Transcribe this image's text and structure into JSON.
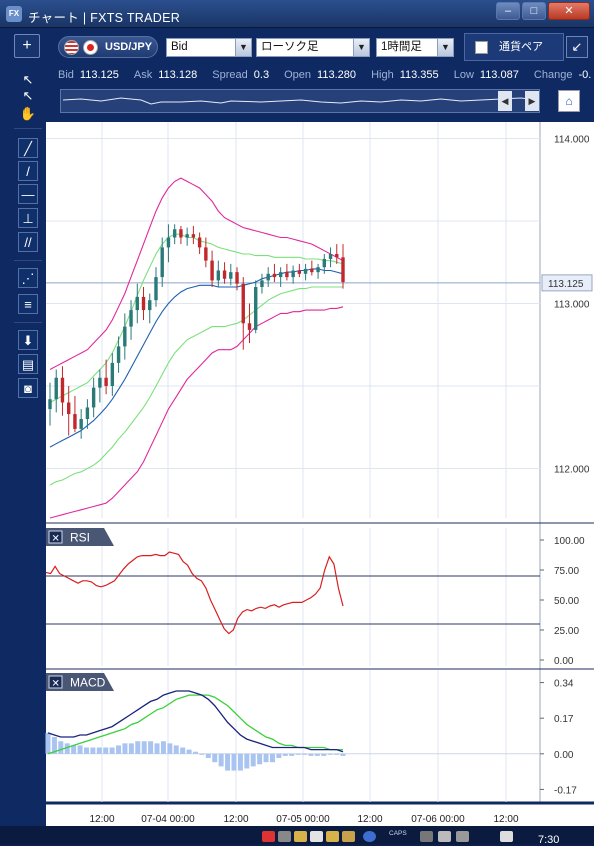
{
  "window": {
    "title": "チャート | FXTS TRADER",
    "app_icon": "FX",
    "buttons": {
      "minimize": "–",
      "maximize": "□",
      "close": "✕"
    }
  },
  "toolbar": {
    "add_label": "+",
    "pair": "USD/JPY",
    "price_type": "Bid",
    "chart_type": "ローソク足",
    "period": "1時間足",
    "currency_tab": "通貨ペア",
    "expand_icon": "↙"
  },
  "quote": {
    "bid_label": "Bid",
    "bid": "113.125",
    "ask_label": "Ask",
    "ask": "113.128",
    "spread_label": "Spread",
    "spread": "0.3",
    "open_label": "Open",
    "open": "113.280",
    "high_label": "High",
    "high": "113.355",
    "low_label": "Low",
    "low": "113.087",
    "change_label": "Change",
    "change": "-0."
  },
  "navigator": {
    "left_arrow": "◀",
    "right_arrow": "▶",
    "home_icon": "⌂"
  },
  "tools": [
    {
      "name": "pointer-tool-icon",
      "glyph": "↖"
    },
    {
      "name": "crosshair-pointer-tool-icon",
      "glyph": "↖"
    },
    {
      "name": "hand-tool-icon",
      "glyph": "✋"
    },
    {
      "name": "trend-pen-tool-icon",
      "glyph": "╱"
    },
    {
      "name": "line-tool-icon",
      "glyph": "/"
    },
    {
      "name": "horizontal-line-tool-icon",
      "glyph": "—"
    },
    {
      "name": "vertical-line-tool-icon",
      "glyph": "⊥"
    },
    {
      "name": "parallel-lines-tool-icon",
      "glyph": "//"
    },
    {
      "name": "fibonacci-fan-tool-icon",
      "glyph": "⋰"
    },
    {
      "name": "fibonacci-retracement-tool-icon",
      "glyph": "≡"
    },
    {
      "name": "download-tool-icon",
      "glyph": "⬇"
    },
    {
      "name": "list-tool-icon",
      "glyph": "▤"
    },
    {
      "name": "camera-tool-icon",
      "glyph": "◙"
    }
  ],
  "price_panel": {
    "y_ticks": [
      "114.000",
      "113.000",
      "112.000"
    ],
    "current_price": "113.125"
  },
  "rsi_panel": {
    "label": "RSI",
    "close_icon": "✕",
    "y_ticks": [
      "100.00",
      "75.00",
      "50.00",
      "25.00",
      "0.00"
    ]
  },
  "macd_panel": {
    "label": "MACD",
    "close_icon": "✕",
    "y_ticks": [
      "0.34",
      "0.17",
      "0.00",
      "-0.17"
    ]
  },
  "x_axis_labels": [
    "12:00",
    "07-04 00:00",
    "12:00",
    "07-05 00:00",
    "12:00",
    "07-06 00:00",
    "12:00"
  ],
  "taskbar": {
    "caps": "CAPS",
    "clock": "7:30"
  },
  "colors": {
    "frame": "#0f2a63",
    "bull_candle": "#2a7a7a",
    "bear_candle": "#c0282c",
    "bollinger_outer": "#e0289a",
    "bollinger_inner": "#7be07b",
    "moving_average": "#1f5fb0",
    "rsi_line": "#d92020",
    "macd_line": "#1a237e",
    "signal_line": "#3ccf3c",
    "histogram": "#a9c4f0"
  },
  "chart_data": [
    {
      "type": "candlestick",
      "title": "USD/JPY",
      "ylim": [
        111.7,
        114.1
      ],
      "x_labels": [
        "12:00",
        "07-04 00:00",
        "12:00",
        "07-05 00:00",
        "12:00",
        "07-06 00:00",
        "12:00"
      ],
      "current": 113.125,
      "candles": [
        {
          "o": 112.36,
          "h": 112.52,
          "l": 112.26,
          "c": 112.42
        },
        {
          "o": 112.42,
          "h": 112.6,
          "l": 112.34,
          "c": 112.55
        },
        {
          "o": 112.55,
          "h": 112.62,
          "l": 112.32,
          "c": 112.4
        },
        {
          "o": 112.4,
          "h": 112.5,
          "l": 112.2,
          "c": 112.33
        },
        {
          "o": 112.33,
          "h": 112.44,
          "l": 112.22,
          "c": 112.24
        },
        {
          "o": 112.24,
          "h": 112.36,
          "l": 112.18,
          "c": 112.3
        },
        {
          "o": 112.3,
          "h": 112.42,
          "l": 112.24,
          "c": 112.37
        },
        {
          "o": 112.37,
          "h": 112.55,
          "l": 112.31,
          "c": 112.49
        },
        {
          "o": 112.49,
          "h": 112.6,
          "l": 112.4,
          "c": 112.55
        },
        {
          "o": 112.55,
          "h": 112.66,
          "l": 112.45,
          "c": 112.5
        },
        {
          "o": 112.5,
          "h": 112.7,
          "l": 112.44,
          "c": 112.64
        },
        {
          "o": 112.64,
          "h": 112.8,
          "l": 112.58,
          "c": 112.74
        },
        {
          "o": 112.74,
          "h": 112.94,
          "l": 112.66,
          "c": 112.86
        },
        {
          "o": 112.86,
          "h": 113.02,
          "l": 112.78,
          "c": 112.96
        },
        {
          "o": 112.96,
          "h": 113.12,
          "l": 112.88,
          "c": 113.04
        },
        {
          "o": 113.04,
          "h": 113.1,
          "l": 112.9,
          "c": 112.96
        },
        {
          "o": 112.96,
          "h": 113.06,
          "l": 112.88,
          "c": 113.02
        },
        {
          "o": 113.02,
          "h": 113.22,
          "l": 112.98,
          "c": 113.16
        },
        {
          "o": 113.16,
          "h": 113.4,
          "l": 113.1,
          "c": 113.34
        },
        {
          "o": 113.34,
          "h": 113.48,
          "l": 113.25,
          "c": 113.4
        },
        {
          "o": 113.4,
          "h": 113.48,
          "l": 113.36,
          "c": 113.45
        },
        {
          "o": 113.45,
          "h": 113.47,
          "l": 113.36,
          "c": 113.4
        },
        {
          "o": 113.4,
          "h": 113.46,
          "l": 113.35,
          "c": 113.42
        },
        {
          "o": 113.42,
          "h": 113.47,
          "l": 113.36,
          "c": 113.4
        },
        {
          "o": 113.4,
          "h": 113.43,
          "l": 113.3,
          "c": 113.34
        },
        {
          "o": 113.34,
          "h": 113.4,
          "l": 113.22,
          "c": 113.26
        },
        {
          "o": 113.26,
          "h": 113.32,
          "l": 113.1,
          "c": 113.14
        },
        {
          "o": 113.14,
          "h": 113.26,
          "l": 113.1,
          "c": 113.2
        },
        {
          "o": 113.2,
          "h": 113.25,
          "l": 113.12,
          "c": 113.15
        },
        {
          "o": 113.15,
          "h": 113.24,
          "l": 113.11,
          "c": 113.19
        },
        {
          "o": 113.19,
          "h": 113.22,
          "l": 113.08,
          "c": 113.12
        },
        {
          "o": 113.12,
          "h": 113.16,
          "l": 112.72,
          "c": 112.88
        },
        {
          "o": 112.88,
          "h": 113.0,
          "l": 112.76,
          "c": 112.84
        },
        {
          "o": 112.84,
          "h": 113.14,
          "l": 112.82,
          "c": 113.1
        },
        {
          "o": 113.1,
          "h": 113.18,
          "l": 113.06,
          "c": 113.14
        },
        {
          "o": 113.14,
          "h": 113.22,
          "l": 113.1,
          "c": 113.18
        },
        {
          "o": 113.18,
          "h": 113.24,
          "l": 113.13,
          "c": 113.16
        },
        {
          "o": 113.16,
          "h": 113.22,
          "l": 113.1,
          "c": 113.19
        },
        {
          "o": 113.19,
          "h": 113.24,
          "l": 113.14,
          "c": 113.16
        },
        {
          "o": 113.16,
          "h": 113.23,
          "l": 113.12,
          "c": 113.2
        },
        {
          "o": 113.2,
          "h": 113.24,
          "l": 113.16,
          "c": 113.18
        },
        {
          "o": 113.18,
          "h": 113.24,
          "l": 113.14,
          "c": 113.21
        },
        {
          "o": 113.21,
          "h": 113.26,
          "l": 113.17,
          "c": 113.19
        },
        {
          "o": 113.19,
          "h": 113.24,
          "l": 113.15,
          "c": 113.22
        },
        {
          "o": 113.22,
          "h": 113.3,
          "l": 113.18,
          "c": 113.27
        },
        {
          "o": 113.27,
          "h": 113.34,
          "l": 113.22,
          "c": 113.3
        },
        {
          "o": 113.3,
          "h": 113.36,
          "l": 113.24,
          "c": 113.28
        },
        {
          "o": 113.28,
          "h": 113.36,
          "l": 113.09,
          "c": 113.13
        }
      ],
      "bollinger_upper2": [
        112.6,
        112.62,
        112.64,
        112.66,
        112.68,
        112.7,
        112.72,
        112.76,
        112.8,
        112.84,
        112.9,
        112.98,
        113.06,
        113.16,
        113.26,
        113.36,
        113.46,
        113.56,
        113.64,
        113.7,
        113.74,
        113.76,
        113.74,
        113.72,
        113.7,
        113.66,
        113.62,
        113.56,
        113.52,
        113.5,
        113.48,
        113.46,
        113.45,
        113.44,
        113.43,
        113.42,
        113.41,
        113.4,
        113.4,
        113.39,
        113.38,
        113.37,
        113.36,
        113.34,
        113.32,
        113.3,
        113.28,
        113.26
      ],
      "bollinger_upper1": [
        112.4,
        112.42,
        112.44,
        112.46,
        112.48,
        112.5,
        112.52,
        112.56,
        112.6,
        112.64,
        112.7,
        112.78,
        112.86,
        112.95,
        113.05,
        113.14,
        113.22,
        113.3,
        113.36,
        113.4,
        113.42,
        113.42,
        113.4,
        113.4,
        113.38,
        113.37,
        113.36,
        113.34,
        113.33,
        113.32,
        113.31,
        113.3,
        113.3,
        113.29,
        113.29,
        113.29,
        113.28,
        113.28,
        113.28,
        113.28,
        113.28,
        113.27,
        113.27,
        113.27,
        113.26,
        113.26,
        113.25,
        113.24
      ],
      "moving_average": [
        112.13,
        112.15,
        112.17,
        112.19,
        112.21,
        112.23,
        112.26,
        112.29,
        112.33,
        112.37,
        112.42,
        112.48,
        112.54,
        112.61,
        112.68,
        112.75,
        112.82,
        112.89,
        112.95,
        113.0,
        113.04,
        113.07,
        113.09,
        113.1,
        113.11,
        113.11,
        113.11,
        113.1,
        113.1,
        113.1,
        113.1,
        113.11,
        113.12,
        113.13,
        113.15,
        113.16,
        113.17,
        113.18,
        113.19,
        113.19,
        113.2,
        113.2,
        113.21,
        113.21,
        113.2,
        113.2,
        113.19,
        113.18
      ],
      "bollinger_lower1": [
        111.9,
        111.92,
        111.93,
        111.95,
        111.97,
        111.98,
        112.0,
        112.02,
        112.05,
        112.09,
        112.13,
        112.18,
        112.22,
        112.27,
        112.32,
        112.37,
        112.43,
        112.5,
        112.57,
        112.64,
        112.7,
        112.74,
        112.78,
        112.8,
        112.82,
        112.84,
        112.86,
        112.86,
        112.86,
        112.87,
        112.88,
        112.9,
        112.93,
        112.96,
        112.99,
        113.02,
        113.04,
        113.06,
        113.07,
        113.08,
        113.09,
        113.09,
        113.1,
        113.1,
        113.1,
        113.1,
        113.1,
        113.1
      ],
      "bollinger_lower2": [
        111.7,
        111.71,
        111.72,
        111.73,
        111.74,
        111.75,
        111.76,
        111.77,
        111.78,
        111.79,
        111.82,
        111.86,
        111.9,
        111.94,
        111.98,
        112.04,
        112.12,
        112.2,
        112.28,
        112.36,
        112.42,
        112.48,
        112.54,
        112.58,
        112.62,
        112.66,
        112.7,
        112.72,
        112.72,
        112.72,
        112.74,
        112.78,
        112.82,
        112.86,
        112.88,
        112.9,
        112.92,
        112.94,
        112.94,
        112.95,
        112.95,
        112.96,
        112.96,
        112.96,
        112.96,
        112.97,
        112.97,
        112.98
      ]
    },
    {
      "type": "line",
      "title": "RSI",
      "ylim": [
        0,
        100
      ],
      "levels": [
        70,
        30
      ],
      "values": [
        73,
        72,
        78,
        72,
        70,
        68,
        66,
        64,
        66,
        66,
        65,
        62,
        61,
        62,
        64,
        66,
        71,
        76,
        80,
        83,
        86,
        87,
        87,
        87,
        88,
        87,
        87,
        90,
        89,
        88,
        82,
        79,
        72,
        68,
        66,
        60,
        50,
        42,
        34,
        26,
        22,
        25,
        35,
        40,
        42,
        41,
        43,
        44,
        43,
        45,
        46,
        44,
        46,
        47,
        48,
        48,
        48,
        50,
        52,
        55,
        60,
        75,
        86,
        80,
        60,
        45
      ]
    },
    {
      "type": "line",
      "title": "MACD",
      "ylim": [
        -0.23,
        0.4
      ],
      "macd": [
        0.1,
        0.09,
        0.08,
        0.08,
        0.08,
        0.09,
        0.09,
        0.1,
        0.11,
        0.12,
        0.13,
        0.15,
        0.17,
        0.19,
        0.21,
        0.23,
        0.25,
        0.26,
        0.28,
        0.29,
        0.3,
        0.3,
        0.3,
        0.29,
        0.28,
        0.26,
        0.23,
        0.19,
        0.15,
        0.12,
        0.09,
        0.07,
        0.06,
        0.05,
        0.04,
        0.03,
        0.03,
        0.03,
        0.03,
        0.03,
        0.03,
        0.02,
        0.02,
        0.02,
        0.02,
        0.02,
        0.01
      ],
      "signal": [
        0.0,
        0.01,
        0.02,
        0.03,
        0.04,
        0.05,
        0.06,
        0.07,
        0.08,
        0.09,
        0.1,
        0.11,
        0.12,
        0.14,
        0.15,
        0.17,
        0.19,
        0.21,
        0.22,
        0.24,
        0.26,
        0.27,
        0.28,
        0.28,
        0.28,
        0.28,
        0.27,
        0.25,
        0.23,
        0.2,
        0.17,
        0.14,
        0.12,
        0.1,
        0.08,
        0.07,
        0.05,
        0.04,
        0.04,
        0.03,
        0.03,
        0.03,
        0.03,
        0.03,
        0.02,
        0.02,
        0.02
      ],
      "histogram": [
        0.1,
        0.08,
        0.06,
        0.05,
        0.04,
        0.04,
        0.03,
        0.03,
        0.03,
        0.03,
        0.03,
        0.04,
        0.05,
        0.05,
        0.06,
        0.06,
        0.06,
        0.05,
        0.06,
        0.05,
        0.04,
        0.03,
        0.02,
        0.01,
        0.0,
        -0.02,
        -0.04,
        -0.06,
        -0.08,
        -0.08,
        -0.08,
        -0.07,
        -0.06,
        -0.05,
        -0.04,
        -0.04,
        -0.02,
        -0.01,
        -0.01,
        0.0,
        0.0,
        -0.01,
        -0.01,
        -0.01,
        0.0,
        0.0,
        -0.01
      ]
    }
  ]
}
